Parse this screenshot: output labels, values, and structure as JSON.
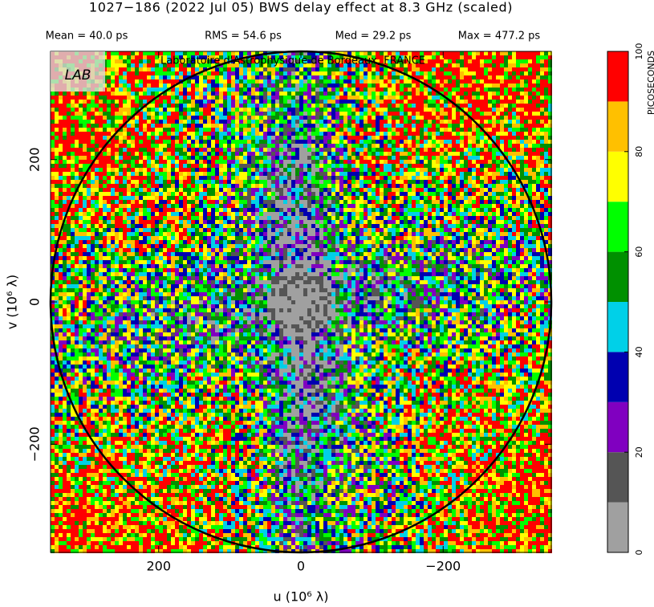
{
  "chart_data": {
    "type": "heatmap",
    "title": "1027−186  (2022 Jul 05)   BWS delay effect at  8.3 GHz (scaled)",
    "stats": [
      "Mean =   40.0 ps",
      "RMS =   54.6 ps",
      "Med =   29.2 ps",
      "Max =  477.2 ps"
    ],
    "watermark": "Laboratoire d'Astrophysique de Bordeaux, FRANCE",
    "logo": "LAB",
    "xlabel": "u  (10⁶ λ)",
    "ylabel": "v  (10⁶ λ)",
    "xlim": [
      352,
      -352
    ],
    "ylim": [
      -352,
      352
    ],
    "xticks": [
      200,
      0,
      {
        "value": -200,
        "label": "−200"
      }
    ],
    "yticks": [
      {
        "value": -200,
        "label": "−200"
      },
      0,
      200
    ],
    "colorbar": {
      "label": "PICOSECONDS",
      "lim": [
        0,
        100
      ],
      "ticks": [
        0,
        20,
        40,
        60,
        80,
        100
      ],
      "levels": [
        0,
        10,
        20,
        30,
        40,
        50,
        60,
        70,
        80,
        90,
        100
      ],
      "colors": [
        "#a0a0a0",
        "#555555",
        "#8000c0",
        "#0000b0",
        "#00d0e8",
        "#009000",
        "#00ff00",
        "#ffff00",
        "#ffc000",
        "#ff0000"
      ]
    }
  }
}
